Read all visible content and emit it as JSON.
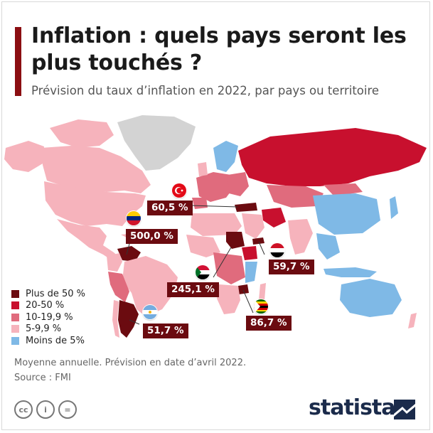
{
  "title": "Inflation : quels pays seront les plus touchés ?",
  "subtitle": "Prévision du taux d’inflation en 2022, par pays ou territoire",
  "legend": [
    {
      "label": "Plus de 50 %",
      "color": "#6b0b10"
    },
    {
      "label": "20-50 %",
      "color": "#c8102e"
    },
    {
      "label": "10-19,9 %",
      "color": "#e06b7d"
    },
    {
      "label": "5-9,9 %",
      "color": "#f6b3bc"
    },
    {
      "label": "Moins de 5%",
      "color": "#7fb9e6"
    }
  ],
  "no_data_color": "#d3d3d3",
  "callouts": [
    {
      "country": "Turquie",
      "label": "60,5 %",
      "value": 60.5,
      "flag": "turkey-flag-icon"
    },
    {
      "country": "Venezuela",
      "label": "500,0 %",
      "value": 500.0,
      "flag": "venezuela-flag-icon"
    },
    {
      "country": "Yémen",
      "label": "59,7 %",
      "value": 59.7,
      "flag": "yemen-flag-icon"
    },
    {
      "country": "Soudan",
      "label": "245,1 %",
      "value": 245.1,
      "flag": "sudan-flag-icon"
    },
    {
      "country": "Zimbabwe",
      "label": "86,7 %",
      "value": 86.7,
      "flag": "zimbabwe-flag-icon"
    },
    {
      "country": "Argentine",
      "label": "51,7 %",
      "value": 51.7,
      "flag": "argentina-flag-icon"
    }
  ],
  "footnote": "Moyenne annuelle. Prévision en date d’avril 2022.",
  "source": "Source : FMI",
  "license_icons": [
    "cc-icon",
    "attribution-icon",
    "no-derivatives-icon"
  ],
  "license_icon_glyphs": [
    "cc",
    "i",
    "="
  ],
  "brand": "statista"
}
